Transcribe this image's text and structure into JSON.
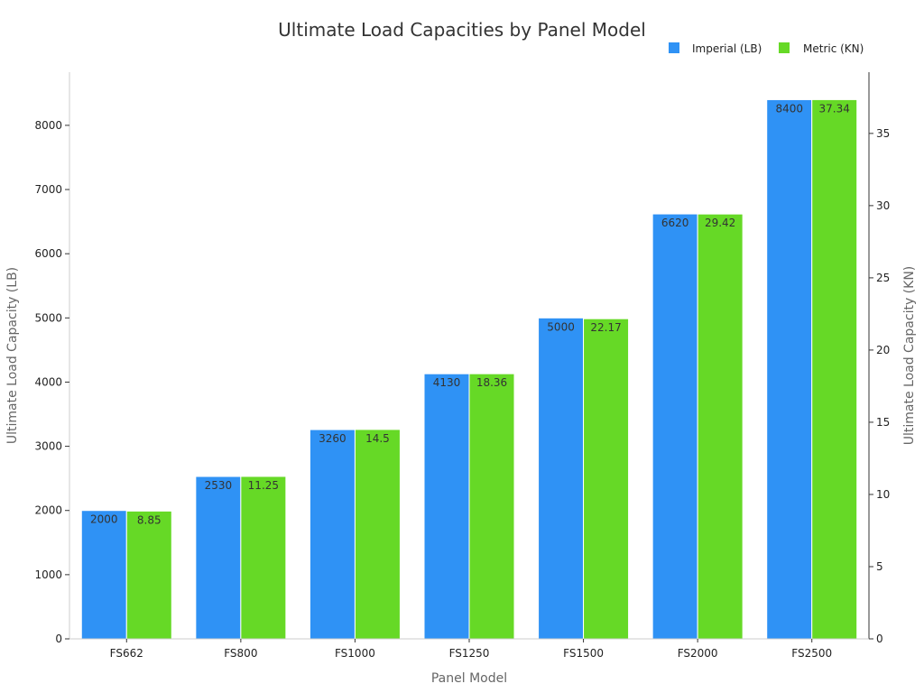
{
  "chart_data": {
    "type": "bar",
    "title": "Ultimate Load Capacities by Panel Model",
    "xlabel": "Panel Model",
    "ylabel": "Ultimate Load Capacity (LB)",
    "y2label": "Ultimate Load Capacity (KN)",
    "categories": [
      "FS662",
      "FS800",
      "FS1000",
      "FS1250",
      "FS1500",
      "FS2000",
      "FS2500"
    ],
    "series": [
      {
        "name": "Imperial (LB)",
        "axis": "left",
        "color": "#2f92f5",
        "values": [
          2000,
          2530,
          3260,
          4130,
          5000,
          6620,
          8400
        ],
        "labels": [
          "2000",
          "2530",
          "3260",
          "4130",
          "5000",
          "6620",
          "8400"
        ]
      },
      {
        "name": "Metric (KN)",
        "axis": "right",
        "color": "#66d926",
        "values": [
          8.85,
          11.25,
          14.5,
          18.36,
          22.17,
          29.42,
          37.34
        ],
        "labels": [
          "8.85",
          "11.25",
          "14.5",
          "18.36",
          "22.17",
          "29.42",
          "37.34"
        ]
      }
    ],
    "ylim": [
      0,
      8828
    ],
    "y2lim": [
      0,
      39.24
    ],
    "yticks": [
      "0",
      "1000",
      "2000",
      "3000",
      "4000",
      "5000",
      "6000",
      "7000",
      "8000"
    ],
    "y2ticks": [
      "0",
      "5",
      "10",
      "15",
      "20",
      "25",
      "30",
      "35"
    ],
    "grid": false,
    "legend": "top-right"
  }
}
